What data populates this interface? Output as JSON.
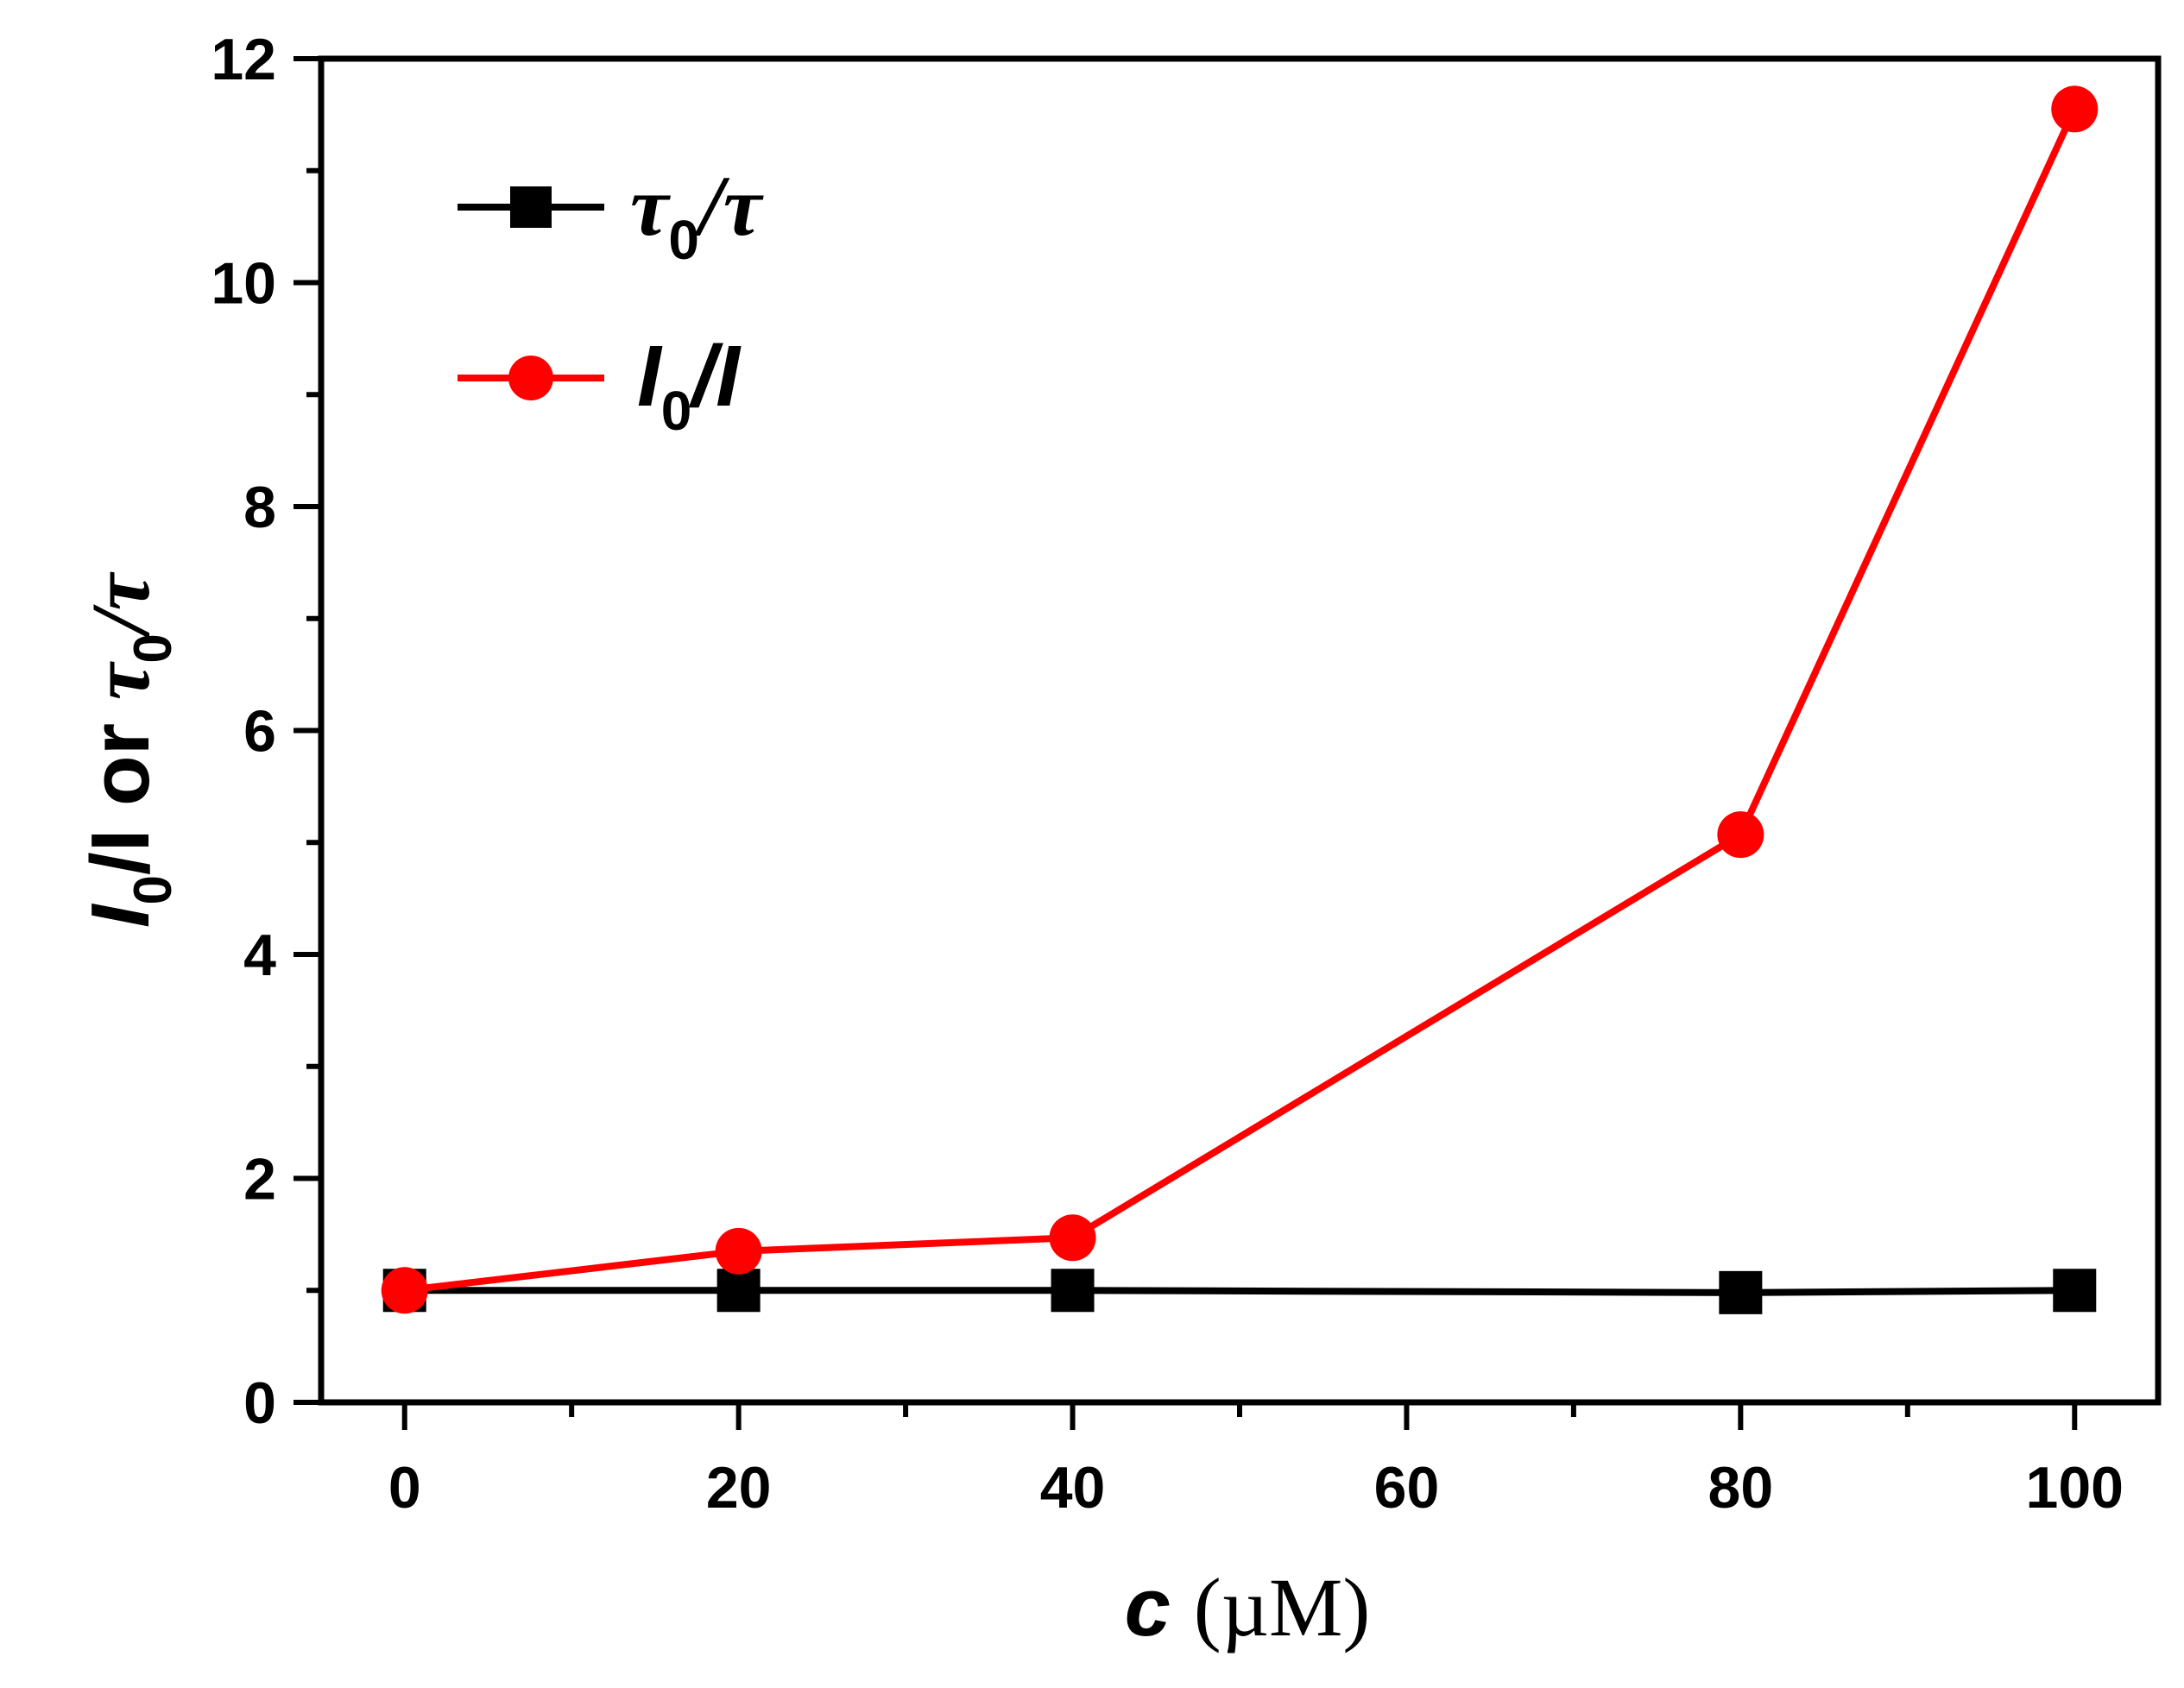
{
  "chart_data": {
    "type": "line",
    "x": [
      0,
      20,
      40,
      80,
      100
    ],
    "xlim": [
      -5,
      105
    ],
    "ylim": [
      0,
      12
    ],
    "xticks": [
      0,
      20,
      40,
      60,
      80,
      100
    ],
    "yticks": [
      0,
      2,
      4,
      6,
      8,
      10,
      12
    ],
    "xlabel": {
      "var": "c",
      "unit": "(µM)"
    },
    "ylabel": {
      "a": "I",
      "sub1": "0",
      "b": "/I or ",
      "c": "τ",
      "sub2": "0",
      "d": "/τ"
    },
    "series": [
      {
        "name": "tau0/tau",
        "legend": {
          "main": "τ",
          "sub": "0",
          "rest": "/τ"
        },
        "color": "#000000",
        "marker": "square",
        "values": [
          1.0,
          1.0,
          1.0,
          0.98,
          1.0
        ]
      },
      {
        "name": "I0/I",
        "legend": {
          "main": "I",
          "sub": "0",
          "rest": "/I"
        },
        "color": "#ff0000",
        "marker": "circle",
        "values": [
          1.0,
          1.35,
          1.47,
          5.07,
          11.55
        ]
      }
    ],
    "legend_position": "top-left"
  }
}
